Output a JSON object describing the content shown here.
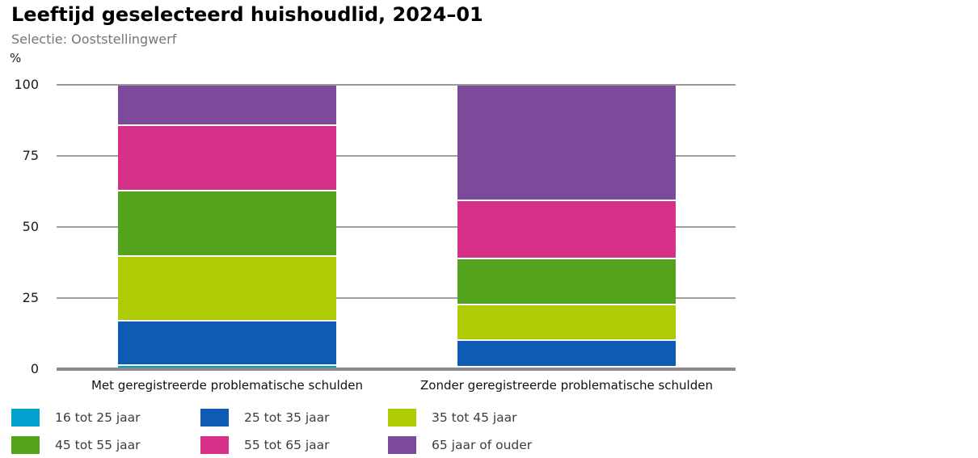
{
  "header": {
    "title": "Leeftijd geselecteerd huishoudlid, 2024–01",
    "subtitle": "Selectie: Ooststellingwerf"
  },
  "chart_data": {
    "type": "bar",
    "stacked": true,
    "orientation": "vertical",
    "title": "Leeftijd geselecteerd huishoudlid, 2024–01",
    "subtitle": "Selectie: Ooststellingwerf",
    "ylabel": "%",
    "ylim": [
      0,
      100
    ],
    "yticks": [
      0,
      25,
      50,
      75,
      100
    ],
    "grid": true,
    "legend_position": "bottom",
    "categories": [
      "Met geregistreerde problematische schulden",
      "Zonder geregistreerde problematische schulden"
    ],
    "series": [
      {
        "name": "16 tot 25 jaar",
        "color": "#00a1cd",
        "values": [
          1.8,
          1.2
        ]
      },
      {
        "name": "25 tot 35 jaar",
        "color": "#0f5bb4",
        "values": [
          15.5,
          9.4
        ]
      },
      {
        "name": "35 tot 45 jaar",
        "color": "#afcb05",
        "values": [
          22.7,
          12.4
        ]
      },
      {
        "name": "45 tot 55 jaar",
        "color": "#53a31d",
        "values": [
          23.0,
          16.2
        ]
      },
      {
        "name": "55 tot 65 jaar",
        "color": "#d63189",
        "values": [
          23.0,
          20.5
        ]
      },
      {
        "name": "65 jaar of ouder",
        "color": "#7d4a9b",
        "values": [
          14.0,
          40.3
        ]
      }
    ],
    "colors": {
      "gridline": "#9e9e9e",
      "axis_baseline": "#8a8a8a",
      "segment_separator": "#ffffff",
      "subtitle_text": "#757575"
    }
  }
}
